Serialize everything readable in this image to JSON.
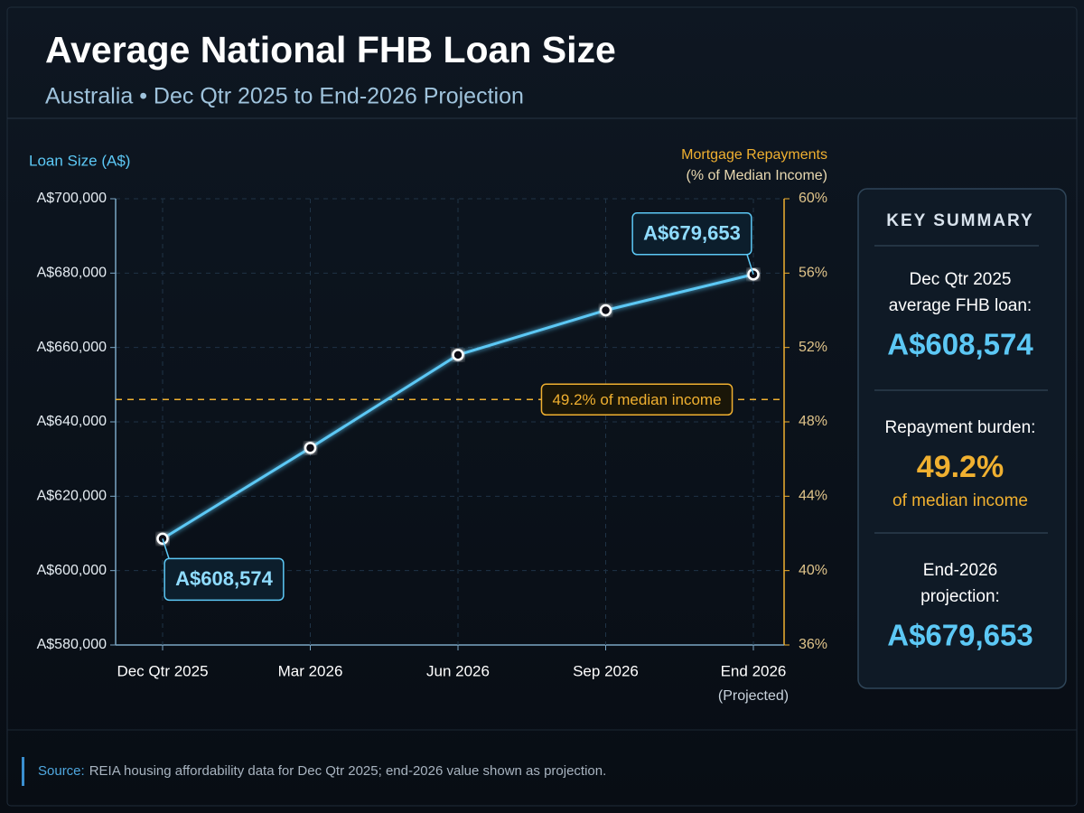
{
  "chart_data": {
    "type": "line",
    "title": "Average National FHB Loan Size",
    "subtitle": "Australia • Dec Qtr 2025 to End-2026 Projection",
    "y_label": "Loan Size (A$)",
    "y2_label": [
      "Mortgage Repayments",
      "(% of Median Income)"
    ],
    "categories": [
      "Dec Qtr 2025",
      "Mar 2026",
      "Jun 2026",
      "Sep 2026",
      "End 2026"
    ],
    "category_note": "(Projected)",
    "values": [
      608574,
      633000,
      658000,
      670000,
      679653
    ],
    "value_labels": [
      "A$608,574",
      null,
      null,
      null,
      "A$679,653"
    ],
    "color": "#5cc8f5",
    "ylim": [
      580000,
      700000
    ],
    "yticks": [
      {
        "value": 580000,
        "label": "A$580,000"
      },
      {
        "value": 600000,
        "label": "A$600,000"
      },
      {
        "value": 620000,
        "label": "A$620,000"
      },
      {
        "value": 640000,
        "label": "A$640,000"
      },
      {
        "value": 660000,
        "label": "A$660,000"
      },
      {
        "value": 680000,
        "label": "A$680,000"
      },
      {
        "value": 700000,
        "label": "A$700,000"
      }
    ],
    "y2lim": [
      36,
      60
    ],
    "y2ticks": [
      {
        "value": 36,
        "label": "36%"
      },
      {
        "value": 40,
        "label": "40%"
      },
      {
        "value": 44,
        "label": "44%"
      },
      {
        "value": 48,
        "label": "48%"
      },
      {
        "value": 52,
        "label": "52%"
      },
      {
        "value": 56,
        "label": "56%"
      },
      {
        "value": 60,
        "label": "60%"
      }
    ],
    "reference_line": {
      "value": 49.2,
      "axis": "y2",
      "label": "49.2% of median income",
      "color": "#f0b030"
    },
    "grid": true
  },
  "summary": {
    "title": "KEY SUMMARY",
    "items": [
      {
        "label": [
          "Dec Qtr 2025",
          "average FHB loan:"
        ],
        "value": "A$608,574"
      },
      {
        "label": [
          "Repayment burden:"
        ],
        "value": "49.2%",
        "note": "of median income"
      },
      {
        "label": [
          "End-2026",
          "projection:"
        ],
        "value": "A$679,653"
      }
    ]
  },
  "footer": {
    "label": "Source:",
    "text": "REIA housing affordability data for Dec Qtr 2025; end-2026 value shown as projection."
  }
}
